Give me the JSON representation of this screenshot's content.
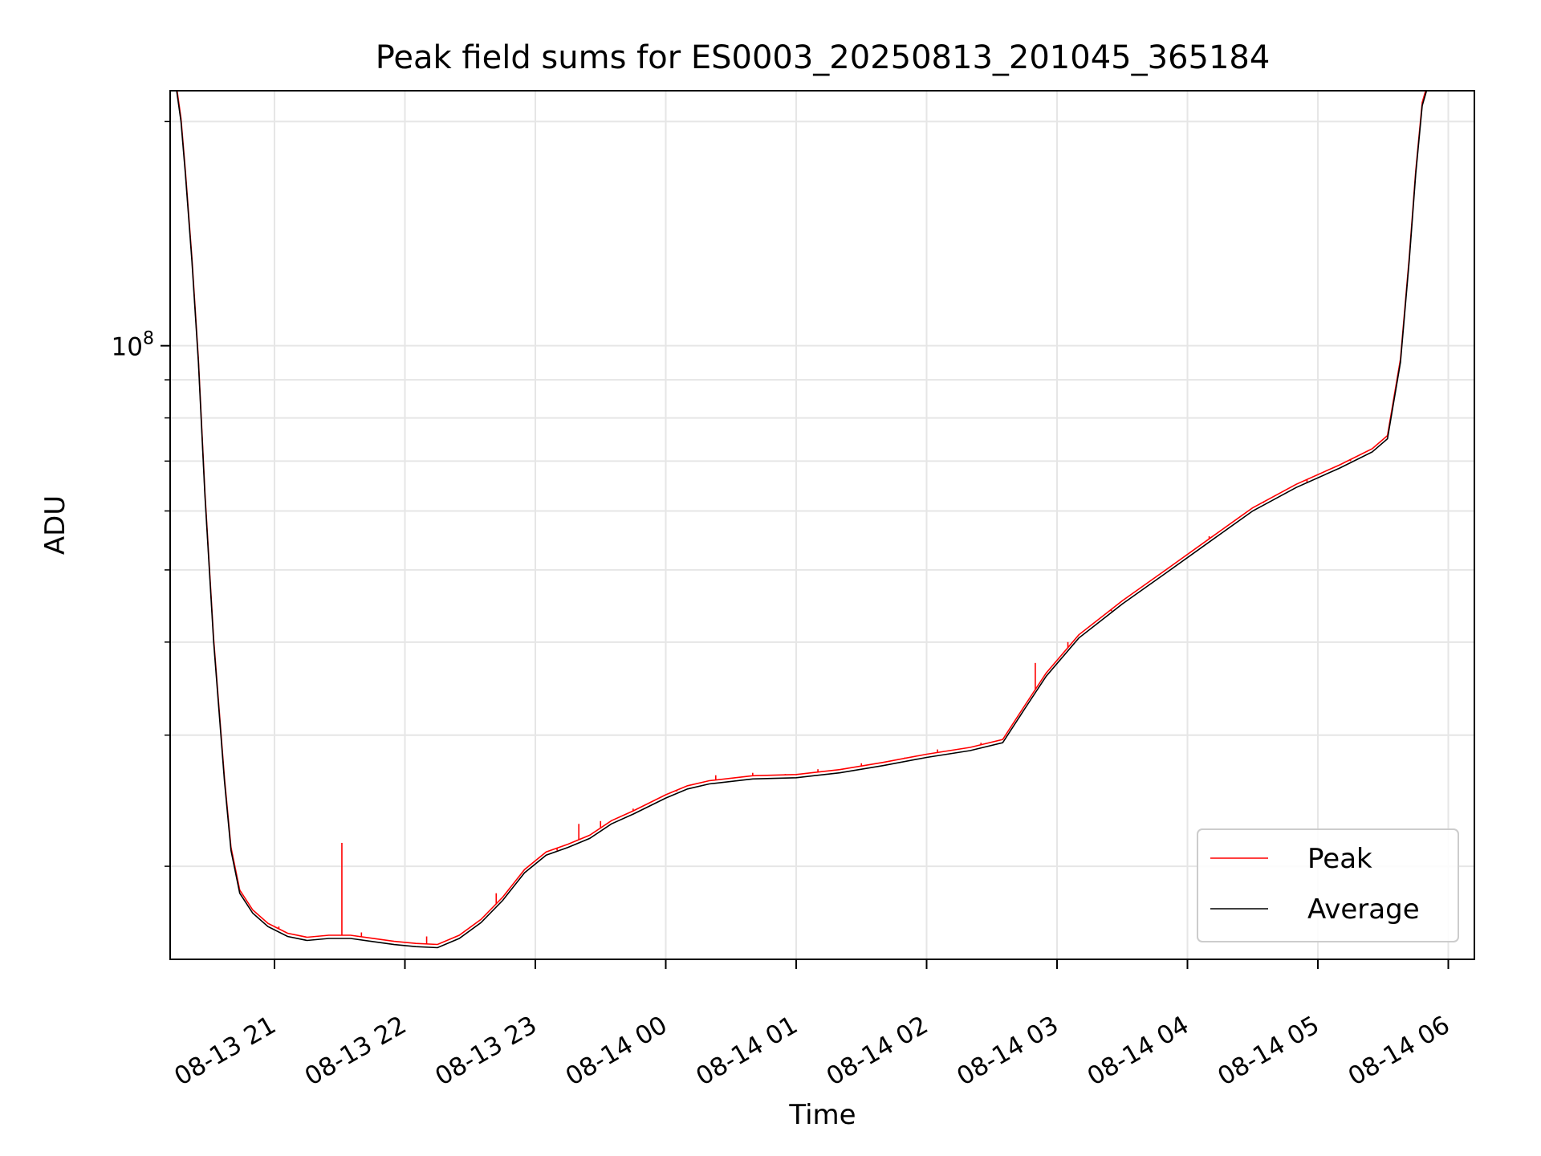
{
  "chart_data": {
    "type": "line",
    "title": "Peak field sums for ES0003_20250813_201045_365184",
    "xlabel": "Time",
    "ylabel": "ADU",
    "x_axis_type": "time",
    "xlim": [
      "2025-08-13 20:12",
      "2025-08-14 06:12"
    ],
    "x_ticks": [
      "08-13 21",
      "08-13 22",
      "08-13 23",
      "08-14 00",
      "08-14 01",
      "08-14 02",
      "08-14 03",
      "08-14 04",
      "08-14 05",
      "08-14 06"
    ],
    "x_tick_times": [
      "2025-08-13 21:00",
      "2025-08-13 22:00",
      "2025-08-13 23:00",
      "2025-08-14 00:00",
      "2025-08-14 01:00",
      "2025-08-14 02:00",
      "2025-08-14 03:00",
      "2025-08-14 04:00",
      "2025-08-14 05:00",
      "2025-08-14 06:00"
    ],
    "y_scale": "log",
    "ylim": [
      15000000,
      220000000
    ],
    "y_major_ticks": [
      {
        "value": 100000000,
        "label": "10^8"
      }
    ],
    "y_minor_ticks": [
      20000000,
      30000000,
      40000000,
      50000000,
      60000000,
      70000000,
      80000000,
      90000000,
      200000000
    ],
    "grid": true,
    "legend_position": "lower-right",
    "colors": {
      "Peak": "#ff0000",
      "Average": "#000000"
    },
    "series": [
      {
        "name": "Average",
        "points": [
          [
            "2025-08-13 20:15",
            220000000
          ],
          [
            "2025-08-13 20:17",
            200000000
          ],
          [
            "2025-08-13 20:19",
            170000000
          ],
          [
            "2025-08-13 20:22",
            130000000
          ],
          [
            "2025-08-13 20:25",
            95000000
          ],
          [
            "2025-08-13 20:28",
            63000000
          ],
          [
            "2025-08-13 20:32",
            40000000
          ],
          [
            "2025-08-13 20:37",
            26000000
          ],
          [
            "2025-08-13 20:40",
            21000000
          ],
          [
            "2025-08-13 20:44",
            18400000
          ],
          [
            "2025-08-13 20:50",
            17300000
          ],
          [
            "2025-08-13 20:57",
            16600000
          ],
          [
            "2025-08-13 21:06",
            16100000
          ],
          [
            "2025-08-13 21:15",
            15900000
          ],
          [
            "2025-08-13 21:25",
            16000000
          ],
          [
            "2025-08-13 21:35",
            16000000
          ],
          [
            "2025-08-13 21:45",
            15850000
          ],
          [
            "2025-08-13 21:55",
            15700000
          ],
          [
            "2025-08-13 22:05",
            15600000
          ],
          [
            "2025-08-13 22:15",
            15550000
          ],
          [
            "2025-08-13 22:25",
            16000000
          ],
          [
            "2025-08-13 22:35",
            16800000
          ],
          [
            "2025-08-13 22:45",
            18000000
          ],
          [
            "2025-08-13 22:55",
            19600000
          ],
          [
            "2025-08-13 23:05",
            20700000
          ],
          [
            "2025-08-13 23:15",
            21200000
          ],
          [
            "2025-08-13 23:25",
            21800000
          ],
          [
            "2025-08-13 23:35",
            22800000
          ],
          [
            "2025-08-13 23:45",
            23500000
          ],
          [
            "2025-08-14 00:00",
            24700000
          ],
          [
            "2025-08-14 00:10",
            25400000
          ],
          [
            "2025-08-14 00:20",
            25800000
          ],
          [
            "2025-08-14 00:40",
            26200000
          ],
          [
            "2025-08-14 01:00",
            26300000
          ],
          [
            "2025-08-14 01:20",
            26700000
          ],
          [
            "2025-08-14 01:40",
            27300000
          ],
          [
            "2025-08-14 02:00",
            28000000
          ],
          [
            "2025-08-14 02:20",
            28600000
          ],
          [
            "2025-08-14 02:35",
            29300000
          ],
          [
            "2025-08-14 02:45",
            32500000
          ],
          [
            "2025-08-14 02:55",
            36000000
          ],
          [
            "2025-08-14 03:10",
            40500000
          ],
          [
            "2025-08-14 03:30",
            45000000
          ],
          [
            "2025-08-14 03:50",
            49500000
          ],
          [
            "2025-08-14 04:10",
            54500000
          ],
          [
            "2025-08-14 04:30",
            60000000
          ],
          [
            "2025-08-14 04:50",
            64500000
          ],
          [
            "2025-08-14 05:10",
            68500000
          ],
          [
            "2025-08-14 05:25",
            72000000
          ],
          [
            "2025-08-14 05:32",
            75000000
          ],
          [
            "2025-08-14 05:38",
            95000000
          ],
          [
            "2025-08-14 05:42",
            130000000
          ],
          [
            "2025-08-14 05:45",
            170000000
          ],
          [
            "2025-08-14 05:48",
            210000000
          ],
          [
            "2025-08-14 05:50",
            220000000
          ],
          [
            "2025-08-14 06:00",
            220000000
          ]
        ]
      },
      {
        "name": "Peak",
        "spikes": [
          [
            "2025-08-13 21:31",
            21500000
          ],
          [
            "2025-08-13 21:02",
            16600000
          ],
          [
            "2025-08-13 21:40",
            16300000
          ],
          [
            "2025-08-13 22:10",
            16100000
          ],
          [
            "2025-08-13 22:42",
            18400000
          ],
          [
            "2025-08-13 23:10",
            21000000
          ],
          [
            "2025-08-13 23:20",
            22800000
          ],
          [
            "2025-08-13 23:30",
            23000000
          ],
          [
            "2025-08-13 23:45",
            23900000
          ],
          [
            "2025-08-14 00:05",
            25200000
          ],
          [
            "2025-08-14 00:23",
            26500000
          ],
          [
            "2025-08-14 00:40",
            26700000
          ],
          [
            "2025-08-14 00:55",
            26600000
          ],
          [
            "2025-08-14 01:10",
            27000000
          ],
          [
            "2025-08-14 01:30",
            27500000
          ],
          [
            "2025-08-14 01:50",
            28000000
          ],
          [
            "2025-08-14 02:05",
            28700000
          ],
          [
            "2025-08-14 02:25",
            29300000
          ],
          [
            "2025-08-14 02:50",
            37500000
          ],
          [
            "2025-08-14 03:05",
            40000000
          ],
          [
            "2025-08-14 03:25",
            44000000
          ],
          [
            "2025-08-14 03:50",
            50000000
          ],
          [
            "2025-08-14 04:10",
            55500000
          ],
          [
            "2025-08-14 04:35",
            61500000
          ],
          [
            "2025-08-14 04:55",
            65500000
          ],
          [
            "2025-08-14 05:15",
            70000000
          ]
        ]
      }
    ]
  }
}
